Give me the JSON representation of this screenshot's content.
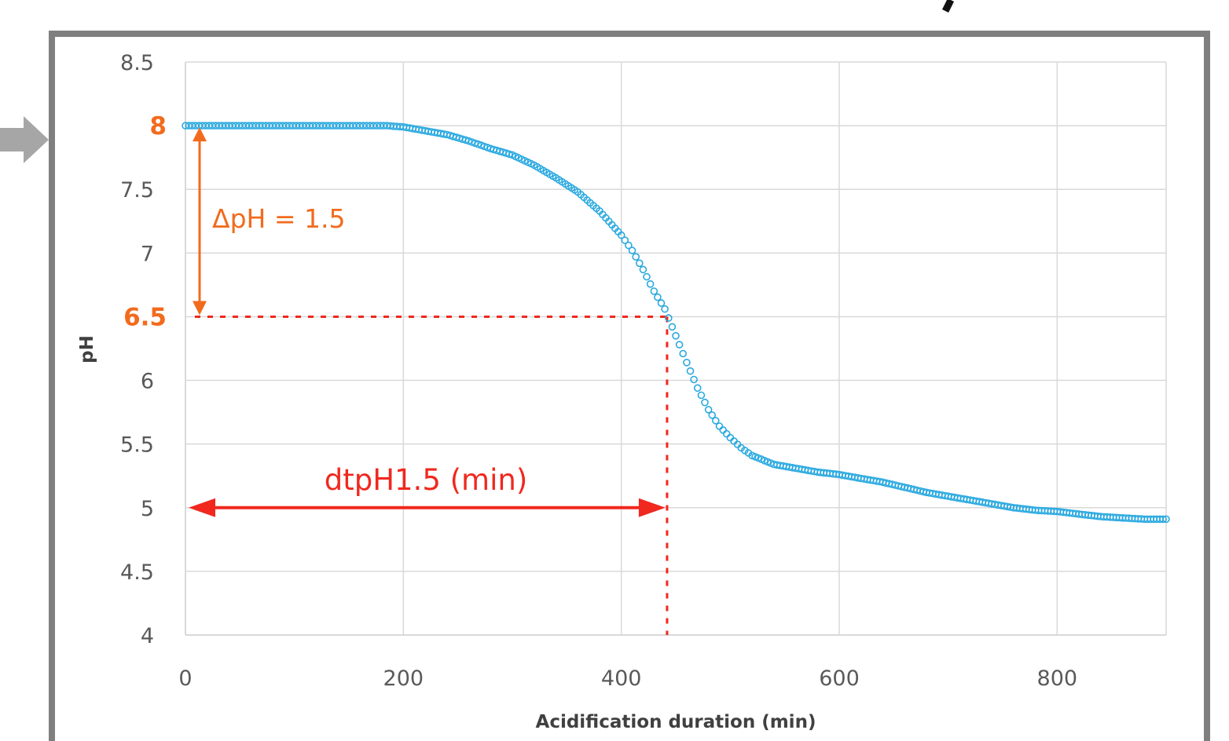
{
  "colors": {
    "series": "#2aa9e0",
    "accent_orange": "#f26b1d",
    "accent_red": "#f0281e",
    "frame": "#7f7f7f",
    "grid": "#d9d9d9",
    "tick_text": "#595959",
    "arrow_pointer": "#a6a6a6"
  },
  "chart_data": {
    "type": "scatter",
    "xlabel": "Acidification duration (min)",
    "ylabel": "pH",
    "xlim": [
      0,
      900
    ],
    "ylim": [
      4,
      8.5
    ],
    "x_ticks": [
      "0",
      "200",
      "400",
      "600",
      "800"
    ],
    "y_ticks": [
      "4",
      "4.5",
      "5",
      "5.5",
      "6",
      "7",
      "7.5",
      "8.5"
    ],
    "y_highlight_ticks": [
      "8",
      "6.5"
    ],
    "grid": true,
    "legend": "none",
    "series": [
      {
        "marker": "circle",
        "x": [
          0,
          40,
          80,
          120,
          160,
          185,
          200,
          220,
          240,
          260,
          280,
          300,
          320,
          340,
          360,
          380,
          400,
          410,
          420,
          430,
          440,
          450,
          460,
          470,
          480,
          490,
          500,
          510,
          520,
          540,
          560,
          580,
          600,
          620,
          640,
          660,
          680,
          700,
          720,
          740,
          760,
          780,
          800,
          820,
          840,
          860,
          880,
          900
        ],
        "y": [
          8.0,
          8.0,
          8.0,
          8.0,
          8.0,
          8.0,
          7.99,
          7.96,
          7.93,
          7.88,
          7.82,
          7.77,
          7.69,
          7.59,
          7.48,
          7.33,
          7.14,
          7.02,
          6.87,
          6.7,
          6.56,
          6.35,
          6.14,
          5.94,
          5.77,
          5.64,
          5.55,
          5.47,
          5.41,
          5.34,
          5.31,
          5.28,
          5.26,
          5.23,
          5.2,
          5.16,
          5.12,
          5.09,
          5.06,
          5.03,
          5.0,
          4.98,
          4.97,
          4.95,
          4.93,
          4.92,
          4.91,
          4.91
        ]
      }
    ],
    "annotations": {
      "delta_label": "ΔpH = 1.5",
      "delta_from": 8,
      "delta_to": 6.5,
      "dt_label": "dtpH1.5 (min)",
      "dt_x": 442,
      "dt_y": 5
    }
  }
}
